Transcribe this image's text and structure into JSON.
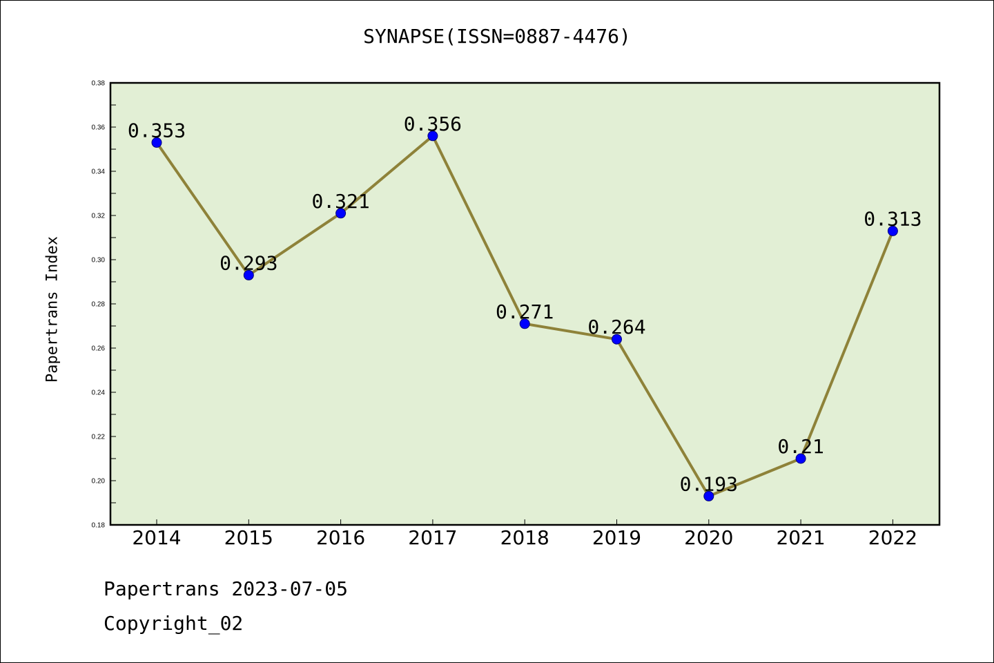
{
  "chart_data": {
    "type": "line",
    "title": "SYNAPSE(ISSN=0887-4476)",
    "xlabel": "",
    "ylabel": "Papertrans Index",
    "categories": [
      "2014",
      "2015",
      "2016",
      "2017",
      "2018",
      "2019",
      "2020",
      "2021",
      "2022"
    ],
    "series": [
      {
        "values": [
          0.353,
          0.293,
          0.321,
          0.356,
          0.271,
          0.264,
          0.193,
          0.21,
          0.313
        ],
        "data_labels": [
          "0.353",
          "0.293",
          "0.321",
          "0.356",
          "0.271",
          "0.264",
          "0.193",
          "0.21",
          "0.313"
        ]
      }
    ],
    "ylim": [
      0.18,
      0.38
    ],
    "yticks": [
      "0.18",
      "0.20",
      "0.22",
      "0.24",
      "0.26",
      "0.28",
      "0.30",
      "0.32",
      "0.34",
      "0.36",
      "0.38"
    ],
    "grid": false,
    "colors": {
      "plot_background": "#e2efd5",
      "line": "#8e8239",
      "marker": "#0000ff",
      "marker_edge": "#00007a"
    }
  },
  "footer": {
    "line1": "Papertrans 2023-07-05",
    "line2": "Copyright_02"
  }
}
